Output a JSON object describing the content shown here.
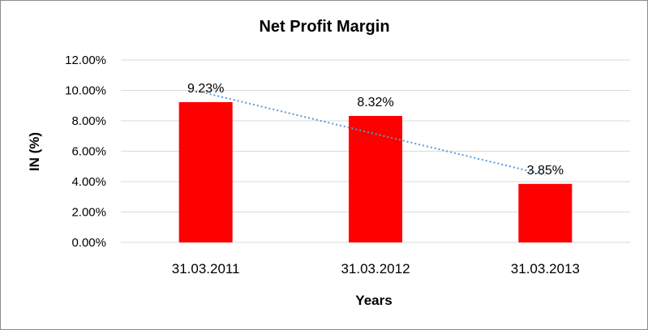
{
  "chart_data": {
    "type": "bar",
    "title": "Net Profit Margin",
    "xlabel": "Years",
    "ylabel": "IN (%)",
    "categories": [
      "31.03.2011",
      "31.03.2012",
      "31.03.2013"
    ],
    "values": [
      9.23,
      8.32,
      3.85
    ],
    "data_labels": [
      "9.23%",
      "8.32%",
      "3.85%"
    ],
    "ylim": [
      0,
      12
    ],
    "y_ticks": [
      0,
      2,
      4,
      6,
      8,
      10,
      12
    ],
    "y_tick_labels": [
      "0.00%",
      "2.00%",
      "4.00%",
      "6.00%",
      "8.00%",
      "10.00%",
      "12.00%"
    ],
    "grid": true,
    "legend": "none",
    "trendline": "linear",
    "bar_color": "#ff0000",
    "trendline_color": "#5b9bd5",
    "grid_color": "#d9d9d9"
  }
}
